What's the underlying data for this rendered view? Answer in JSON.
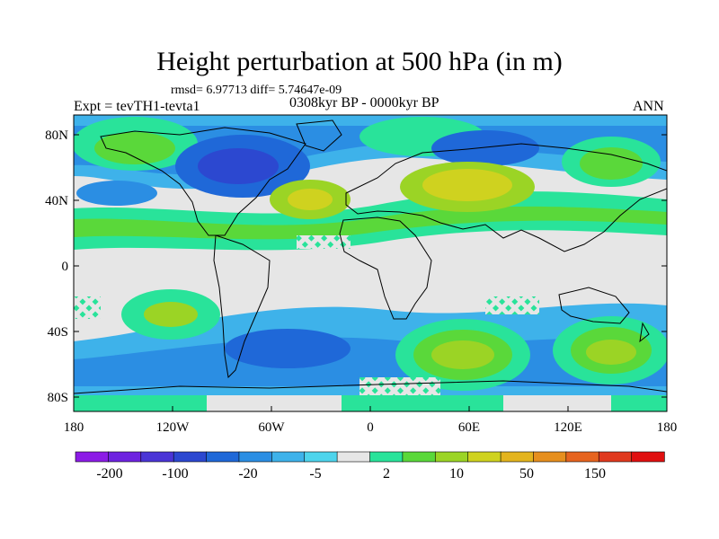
{
  "title": "Height perturbation at 500 hPa (in m)",
  "stats": "rmsd= 6.97713 diff= 5.74647e-09",
  "experiment": "Expt = tevTH1-tevta1",
  "period": "0308kyr BP - 0000kyr BP",
  "season": "ANN",
  "lat_labels": [
    "80N",
    "40N",
    "0",
    "40S",
    "80S"
  ],
  "lon_labels": [
    "180",
    "120W",
    "60W",
    "0",
    "60E",
    "120E",
    "180"
  ],
  "colorbar": {
    "colors": [
      "#8c1ce6",
      "#6e23e0",
      "#4b35d6",
      "#2c48d0",
      "#1f68d8",
      "#2b8ee3",
      "#3eb2ea",
      "#4ed4ec",
      "#e6e6e6",
      "#29e39a",
      "#5ad83a",
      "#9bd425",
      "#cfd21f",
      "#e3b41e",
      "#e68f1e",
      "#e6641f",
      "#e0391e",
      "#e01010"
    ],
    "labels": [
      "-200",
      "-100",
      "-20",
      "-5",
      "2",
      "10",
      "50",
      "150"
    ]
  }
}
